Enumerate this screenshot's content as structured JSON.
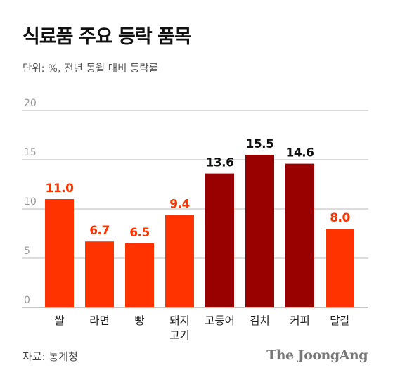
{
  "header": {
    "title": "식료품 주요 등락 품목",
    "unit_note": "단위: %, 전년 동월 대비 등락률"
  },
  "footer": {
    "source": "자료: 통계청",
    "brand": "The JoongAng"
  },
  "colors": {
    "accent": "#ff3300",
    "highlight": "#990000",
    "grid": "#bbbbbb",
    "axis_text": "#999999"
  },
  "chart_data": {
    "type": "bar",
    "categories": [
      "쌀",
      "라면",
      "빵",
      "돼지\n고기",
      "고등어",
      "김치",
      "커피",
      "달걀"
    ],
    "values": [
      11.0,
      6.7,
      6.5,
      9.4,
      13.6,
      15.5,
      14.6,
      8.0
    ],
    "value_labels": [
      "11.0",
      "6.7",
      "6.5",
      "9.4",
      "13.6",
      "15.5",
      "14.6",
      "8.0"
    ],
    "highlighted": [
      false,
      false,
      false,
      false,
      true,
      true,
      true,
      false
    ],
    "yticks": [
      0,
      5,
      10,
      15,
      20
    ],
    "ylim": [
      0,
      20
    ],
    "grid": true
  }
}
